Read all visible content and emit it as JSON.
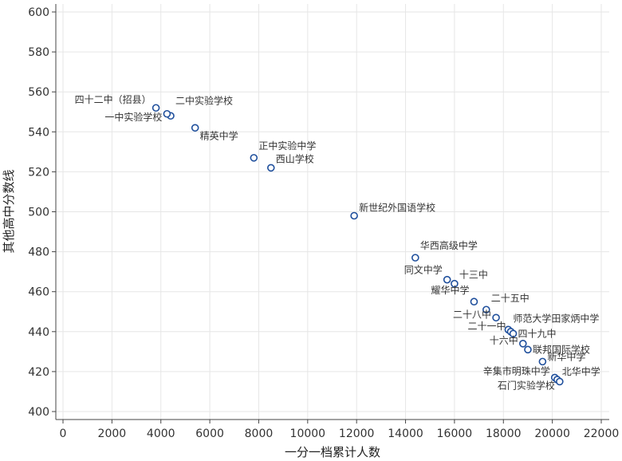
{
  "chart_data": {
    "type": "scatter",
    "title": "",
    "xlabel": "一分一档累计人数",
    "ylabel": "其他高中分数线",
    "xlim": [
      0,
      22000
    ],
    "ylim": [
      400,
      600
    ],
    "x_ticks": [
      0,
      2000,
      4000,
      6000,
      8000,
      10000,
      12000,
      14000,
      16000,
      18000,
      20000,
      22000
    ],
    "y_ticks": [
      400,
      420,
      440,
      460,
      480,
      500,
      520,
      540,
      560,
      580,
      600
    ],
    "grid": true,
    "colors": {
      "marker_edge": "#1f4f9c",
      "marker_fill": "#ffffff",
      "grid": "#e6e6e6"
    },
    "points": [
      {
        "label": "四十二中（招县）",
        "x": 3800,
        "y": 552,
        "anchor": "end"
      },
      {
        "label": "二中实验学校",
        "x": 4400,
        "y": 548,
        "anchor": "start"
      },
      {
        "label": "一中实验学校",
        "x": 4250,
        "y": 549,
        "anchor": "end"
      },
      {
        "label": "精英中学",
        "x": 5400,
        "y": 542,
        "anchor": "start"
      },
      {
        "label": "正中实验中学",
        "x": 7800,
        "y": 527,
        "anchor": "start"
      },
      {
        "label": "西山学校",
        "x": 8500,
        "y": 522,
        "anchor": "start"
      },
      {
        "label": "新世纪外国语学校",
        "x": 11900,
        "y": 498,
        "anchor": "start"
      },
      {
        "label": "华西高级中学",
        "x": 14400,
        "y": 477,
        "anchor": "start"
      },
      {
        "label": "同文中学",
        "x": 15700,
        "y": 466,
        "anchor": "end"
      },
      {
        "label": "十三中",
        "x": 16000,
        "y": 464,
        "anchor": "start"
      },
      {
        "label": "耀华中学",
        "x": 16800,
        "y": 455,
        "anchor": "end"
      },
      {
        "label": "二十五中",
        "x": 17300,
        "y": 451,
        "anchor": "start"
      },
      {
        "label": "二十八中",
        "x": 17700,
        "y": 447,
        "anchor": "end"
      },
      {
        "label": "师范大学田家炳中学",
        "x": 18200,
        "y": 441,
        "anchor": "start"
      },
      {
        "label": "二十一中",
        "x": 18300,
        "y": 440,
        "anchor": "end"
      },
      {
        "label": "四十九中",
        "x": 18400,
        "y": 439,
        "anchor": "start"
      },
      {
        "label": "十六中",
        "x": 18800,
        "y": 434,
        "anchor": "end"
      },
      {
        "label": "联邦国际学校",
        "x": 19000,
        "y": 431,
        "anchor": "start"
      },
      {
        "label": "新华中学",
        "x": 19600,
        "y": 425,
        "anchor": "start"
      },
      {
        "label": "辛集市明珠中学",
        "x": 20100,
        "y": 417,
        "anchor": "end"
      },
      {
        "label": "北华中学",
        "x": 20200,
        "y": 416,
        "anchor": "start"
      },
      {
        "label": "石门实验学校",
        "x": 20300,
        "y": 415,
        "anchor": "end"
      }
    ]
  }
}
